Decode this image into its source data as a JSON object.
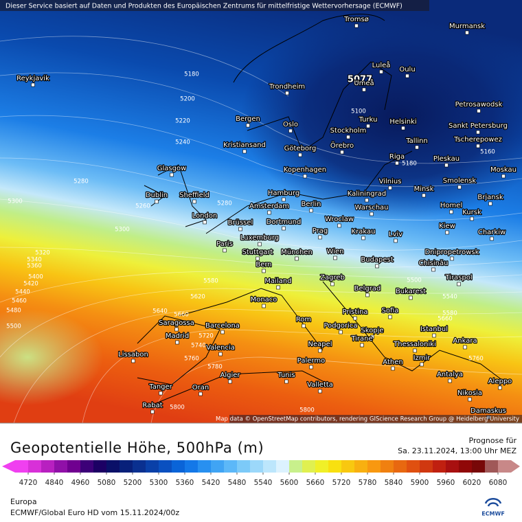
{
  "map": {
    "notice": "Dieser Service basiert auf Daten und Produkten des Europäischen Zentrums für mittelfristige Wettervorhersage (ECMWF)",
    "attribution": "Map data © OpenStreetMap contributors, rendering GIScience Research Group @ Heidelberg University",
    "cities": [
      "Tromsø",
      "Murmansk",
      "Reykjavik",
      "Luleå",
      "Oulu",
      "Umeå",
      "Trondheim",
      "Petrosawodsk",
      "Bergen",
      "Oslo",
      "Turku",
      "Helsinki",
      "Sankt Petersburg",
      "Stockholm",
      "Kristiansand",
      "Göteborg",
      "Örebro",
      "Tallinn",
      "Tscherepowez",
      "Riga",
      "Pleskau",
      "Glasgow",
      "Kopenhagen",
      "Moskau",
      "Vilnius",
      "Minsk",
      "Smolensk",
      "Hamburg",
      "Kaliningrad",
      "Dublin",
      "Sheffield",
      "Brjansk",
      "Amsterdam",
      "Berlin",
      "Warschau",
      "Homel",
      "Kursk",
      "London",
      "Wroclaw",
      "Brüssel",
      "Dortmund",
      "Kiew",
      "Krakau",
      "Prag",
      "Charkiw",
      "Luxemburg",
      "Lviv",
      "Paris",
      "Stuttgart",
      "München",
      "Wien",
      "Dnipropetrowsk",
      "Budapest",
      "Chisinău",
      "Bern",
      "Mailand",
      "Zagreb",
      "Tiraspol",
      "Belgrad",
      "Bukarest",
      "Monaco",
      "Sofia",
      "Pristina",
      "Rom",
      "Saragossa",
      "Barcelona",
      "Podgorica",
      "Skopje",
      "Madrid",
      "Tirane",
      "Istanbul",
      "Ankara",
      "Valencia",
      "Neapel",
      "Thessaloniki",
      "Lissabon",
      "Izmir",
      "Athen",
      "Palermo",
      "Algier",
      "Tunis",
      "Antalya",
      "Valletta",
      "Aleppo",
      "Tanger",
      "Oran",
      "Nikosia",
      "Rabat",
      "Damaskus"
    ],
    "contour_labels": [
      5077,
      5180,
      5200,
      5220,
      5240,
      5100,
      5180,
      5160,
      5280,
      5300,
      5260,
      5280,
      5300,
      5320,
      5340,
      5360,
      5400,
      5420,
      5440,
      5460,
      5480,
      5500,
      5580,
      5620,
      5640,
      5660,
      5720,
      5740,
      5760,
      5780,
      5800,
      5800,
      5500,
      5540,
      5580,
      5660,
      5760
    ]
  },
  "legend": {
    "title": "Geopotentielle Höhe, 500hPa (m)",
    "forecast_label": "Prognose für",
    "forecast_time": "Sa. 23.11.2024, 13:00 Uhr MEZ",
    "ticks": [
      4720,
      4840,
      4960,
      5080,
      5200,
      5300,
      5360,
      5420,
      5480,
      5540,
      5600,
      5660,
      5720,
      5780,
      5840,
      5900,
      5960,
      6020,
      6080
    ],
    "colors": [
      "#f040f0",
      "#d830d8",
      "#b820c0",
      "#9010a8",
      "#700090",
      "#3c0078",
      "#1c0064",
      "#0a1068",
      "#08207a",
      "#0a3090",
      "#0a40a8",
      "#0a50c0",
      "#0a64d8",
      "#1478e8",
      "#2890f0",
      "#40a4f4",
      "#5cb8f8",
      "#7ccaf8",
      "#9cd8fa",
      "#bce6fc",
      "#dcf2fe",
      "#c8f08c",
      "#e0f050",
      "#f0f028",
      "#f8e010",
      "#f8c810",
      "#f8b010",
      "#f89810",
      "#f08010",
      "#e86810",
      "#e05010",
      "#d03810",
      "#c02010",
      "#a81010",
      "#900808",
      "#780808",
      "#a05858",
      "#c88888"
    ]
  },
  "footer": {
    "region": "Europa",
    "model": "ECMWF/Global Euro HD vom  15.11.2024/00z",
    "logo": "ECMWF"
  }
}
